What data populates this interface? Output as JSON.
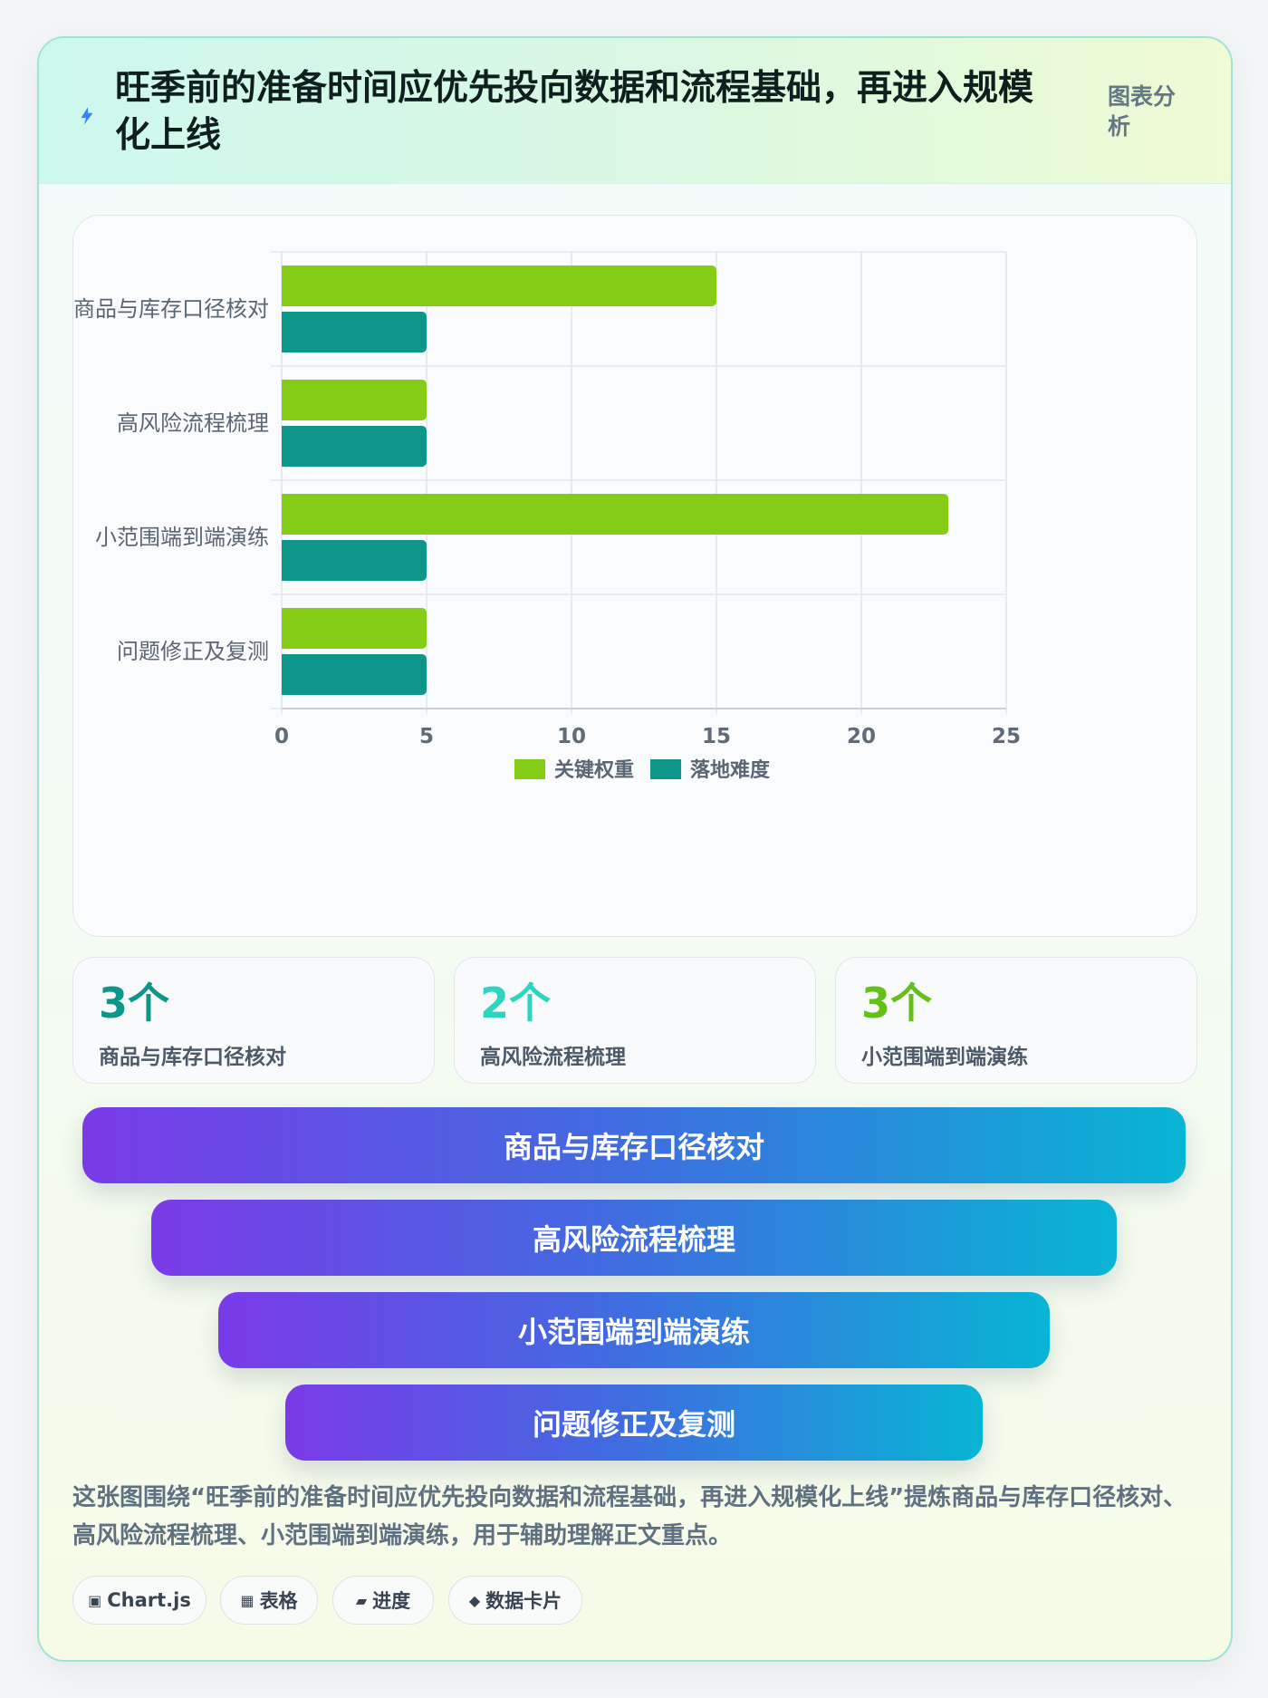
{
  "header": {
    "title": "旺季前的准备时间应优先投向数据和流程基础，再进入规模化上线",
    "tag": "图表分析",
    "icon": "lightning-icon"
  },
  "chart_data": {
    "type": "bar",
    "orientation": "horizontal",
    "categories": [
      "商品与库存口径核对",
      "高风险流程梳理",
      "小范围端到端演练",
      "问题修正及复测"
    ],
    "series": [
      {
        "name": "关键权重",
        "values": [
          15,
          5,
          23,
          5
        ],
        "color": "#84cc16"
      },
      {
        "name": "落地难度",
        "values": [
          5,
          5,
          5,
          5
        ],
        "color": "#0f968a"
      }
    ],
    "xlim": [
      0,
      25
    ],
    "xticks": [
      "0",
      "5",
      "10",
      "15",
      "20",
      "25"
    ],
    "legend_position": "bottom",
    "grid": true
  },
  "kpis": [
    {
      "value": "3个",
      "label": "商品与库存口径核对",
      "color": "#0f968a"
    },
    {
      "value": "2个",
      "label": "高风险流程梳理",
      "color": "#2dd4bf"
    },
    {
      "value": "3个",
      "label": "小范围端到端演练",
      "color": "#65c01a"
    }
  ],
  "funnel": [
    "商品与库存口径核对",
    "高风险流程梳理",
    "小范围端到端演练",
    "问题修正及复测"
  ],
  "summary": "这张图围绕“旺季前的准备时间应优先投向数据和流程基础，再进入规模化上线”提炼商品与库存口径核对、高风险流程梳理、小范围端到端演练，用于辅助理解正文重点。",
  "pills": [
    {
      "icon": "▣",
      "label": "Chart.js"
    },
    {
      "icon": "▦",
      "label": "表格"
    },
    {
      "icon": "▰",
      "label": "进度"
    },
    {
      "icon": "◆",
      "label": "数据卡片"
    }
  ]
}
